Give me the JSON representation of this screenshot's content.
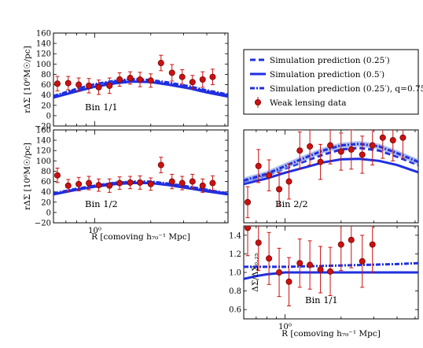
{
  "colors": {
    "sim_line": "#1f2fe0",
    "sim_band": "#8fa6e8",
    "data_marker": "#cc1111",
    "data_edge": "#7a0000",
    "axis": "#000000"
  },
  "legend": {
    "entries": [
      "Simulation prediction (0.25′)",
      "Simulation prediction (0.5′)",
      "Simulation prediction (0.25′), q=0.75",
      "Weak lensing data"
    ]
  },
  "chart_data": [
    {
      "type": "line",
      "panel": "top-left",
      "annotation": "Bin 1/1",
      "ylabel": "rΔΣ [10⁶M☉/pc]",
      "xlabel": "",
      "xscale": "log",
      "xlim": [
        0.6,
        5.2
      ],
      "ylim": [
        -20,
        160
      ],
      "yticks": [
        -20,
        0,
        20,
        40,
        60,
        80,
        100,
        120,
        140,
        160
      ],
      "xtick_labels": [],
      "series": [
        {
          "name": "Simulation prediction (0.25′)",
          "style": "dashed",
          "x": [
            0.6,
            0.8,
            1.0,
            1.3,
            1.6,
            2.0,
            2.5,
            3.2,
            4.0,
            5.2
          ],
          "y": [
            37,
            50,
            59,
            66,
            69,
            67,
            62,
            55,
            47,
            39
          ]
        },
        {
          "name": "Simulation prediction (0.5′)",
          "style": "solid",
          "x": [
            0.6,
            0.8,
            1.0,
            1.3,
            1.6,
            2.0,
            2.5,
            3.2,
            4.0,
            5.2
          ],
          "y": [
            35,
            47,
            56,
            63,
            66,
            65,
            60,
            53,
            45,
            37
          ]
        },
        {
          "name": "Simulation prediction (0.25′), q=0.75",
          "style": "dashdot",
          "x": [
            0.6,
            0.8,
            1.0,
            1.3,
            1.6,
            2.0,
            2.5,
            3.2,
            4.0,
            5.2
          ],
          "y": [
            38,
            52,
            61,
            68,
            71,
            69,
            64,
            57,
            49,
            41
          ]
        },
        {
          "name": "Weak lensing data",
          "style": "points",
          "x": [
            0.63,
            0.72,
            0.82,
            0.93,
            1.05,
            1.2,
            1.36,
            1.55,
            1.75,
            2.0,
            2.27,
            2.6,
            2.95,
            3.35,
            3.8,
            4.3
          ],
          "y": [
            62,
            63,
            60,
            58,
            55,
            58,
            70,
            73,
            70,
            68,
            102,
            83,
            75,
            65,
            70,
            75
          ],
          "err": [
            14,
            13,
            13,
            14,
            14,
            15,
            13,
            12,
            14,
            13,
            15,
            16,
            14,
            13,
            15,
            15
          ]
        }
      ]
    },
    {
      "type": "line",
      "panel": "middle-left",
      "annotation": "Bin 1/2",
      "ylabel": "rΔΣ [10⁶M☉/pc]",
      "xlabel": "R [comoving h₇₀⁻¹ Mpc]",
      "xscale": "log",
      "xlim": [
        0.6,
        5.2
      ],
      "ylim": [
        -20,
        160
      ],
      "yticks": [
        -20,
        0,
        20,
        40,
        60,
        80,
        100,
        120,
        140,
        160
      ],
      "xtick_labels": [
        "10⁰"
      ],
      "series": [
        {
          "name": "Simulation prediction (0.25′)",
          "style": "dashed",
          "x": [
            0.6,
            0.8,
            1.0,
            1.3,
            1.6,
            2.0,
            2.5,
            3.2,
            4.0,
            5.2
          ],
          "y": [
            36,
            45,
            51,
            57,
            59,
            59,
            55,
            49,
            43,
            36
          ]
        },
        {
          "name": "Simulation prediction (0.5′)",
          "style": "solid",
          "x": [
            0.6,
            0.8,
            1.0,
            1.3,
            1.6,
            2.0,
            2.5,
            3.2,
            4.0,
            5.2
          ],
          "y": [
            35,
            44,
            50,
            55,
            57,
            57,
            53,
            47,
            41,
            35
          ]
        },
        {
          "name": "Simulation prediction (0.25′), q=0.75",
          "style": "dashdot",
          "x": [
            0.6,
            0.8,
            1.0,
            1.3,
            1.6,
            2.0,
            2.5,
            3.2,
            4.0,
            5.2
          ],
          "y": [
            37,
            46,
            52,
            58,
            60,
            60,
            56,
            50,
            44,
            37
          ]
        },
        {
          "name": "Weak lensing data",
          "style": "points",
          "x": [
            0.63,
            0.72,
            0.82,
            0.93,
            1.05,
            1.2,
            1.36,
            1.55,
            1.75,
            2.0,
            2.27,
            2.6,
            2.95,
            3.35,
            3.8,
            4.3
          ],
          "y": [
            72,
            52,
            55,
            57,
            53,
            52,
            57,
            58,
            58,
            55,
            92,
            60,
            57,
            60,
            52,
            57
          ],
          "err": [
            14,
            12,
            13,
            13,
            12,
            13,
            12,
            12,
            13,
            12,
            15,
            14,
            13,
            14,
            13,
            14
          ]
        }
      ]
    },
    {
      "type": "line",
      "panel": "middle-right",
      "annotation": "Bin 2/2",
      "ylabel": "",
      "xlabel": "",
      "xscale": "log",
      "xlim": [
        0.6,
        5.2
      ],
      "ylim": [
        -20,
        160
      ],
      "yticks": [],
      "xtick_labels": [],
      "series": [
        {
          "name": "Simulation prediction (0.25′)",
          "style": "dashed",
          "x": [
            0.6,
            0.8,
            1.0,
            1.3,
            1.6,
            2.0,
            2.5,
            3.2,
            4.0,
            5.2
          ],
          "y": [
            60,
            72,
            85,
            100,
            112,
            122,
            125,
            120,
            108,
            92
          ]
        },
        {
          "name": "Simulation prediction (0.5′)",
          "style": "solid",
          "x": [
            0.6,
            0.8,
            1.0,
            1.3,
            1.6,
            2.0,
            2.5,
            3.2,
            4.0,
            5.2
          ],
          "y": [
            55,
            66,
            77,
            88,
            97,
            103,
            104,
            100,
            92,
            78
          ]
        },
        {
          "name": "Simulation prediction (0.25′), q=0.75",
          "style": "dashdot",
          "x": [
            0.6,
            0.8,
            1.0,
            1.3,
            1.6,
            2.0,
            2.5,
            3.2,
            4.0,
            5.2
          ],
          "y": [
            62,
            75,
            90,
            107,
            120,
            130,
            133,
            128,
            115,
            98
          ]
        },
        {
          "name": "Weak lensing data",
          "style": "points",
          "x": [
            0.63,
            0.72,
            0.82,
            0.93,
            1.05,
            1.2,
            1.36,
            1.55,
            1.75,
            2.0,
            2.27,
            2.6,
            2.95,
            3.35,
            3.8,
            4.3
          ],
          "y": [
            20,
            90,
            72,
            45,
            60,
            120,
            128,
            98,
            130,
            118,
            122,
            112,
            130,
            145,
            140,
            145
          ],
          "err": [
            30,
            32,
            30,
            32,
            34,
            36,
            36,
            34,
            36,
            36,
            38,
            36,
            38,
            40,
            40,
            40
          ]
        }
      ]
    },
    {
      "type": "line",
      "panel": "bottom-right",
      "annotation": "Bin 1/1",
      "ylabel": "ΔΣ/ΔΣ₀.₂₅",
      "xlabel": "R [comoving h₇₀⁻¹ Mpc]",
      "xscale": "log",
      "xlim": [
        0.6,
        5.2
      ],
      "ylim": [
        0.5,
        1.5
      ],
      "yticks": [
        0.6,
        0.8,
        1.0,
        1.2,
        1.4
      ],
      "xtick_labels": [
        "10⁰"
      ],
      "series": [
        {
          "name": "Simulation prediction (0.5′)",
          "style": "solid",
          "x": [
            0.6,
            0.7,
            0.8,
            0.9,
            1.0,
            1.3,
            1.6,
            2.0,
            2.5,
            3.2,
            4.0,
            5.2
          ],
          "y": [
            0.93,
            0.96,
            0.98,
            0.99,
            1.0,
            1.0,
            1.0,
            1.0,
            1.0,
            1.0,
            1.0,
            1.0
          ]
        },
        {
          "name": "Simulation prediction (0.25′), q=0.75",
          "style": "dashdot",
          "x": [
            0.6,
            1.0,
            1.6,
            2.5,
            4.0,
            5.2
          ],
          "y": [
            1.06,
            1.06,
            1.07,
            1.08,
            1.09,
            1.1
          ]
        },
        {
          "name": "Weak lensing data",
          "style": "points",
          "x": [
            0.63,
            0.72,
            0.82,
            0.93,
            1.05,
            1.2,
            1.36,
            1.55,
            1.75,
            2.0,
            2.27,
            2.6,
            2.95
          ],
          "y": [
            1.48,
            1.32,
            1.15,
            1.0,
            0.9,
            1.1,
            1.08,
            1.03,
            1.01,
            1.3,
            1.35,
            1.12,
            1.3
          ],
          "err": [
            0.3,
            0.3,
            0.28,
            0.26,
            0.26,
            0.26,
            0.26,
            0.25,
            0.26,
            0.28,
            0.3,
            0.28,
            0.3
          ]
        }
      ]
    }
  ]
}
